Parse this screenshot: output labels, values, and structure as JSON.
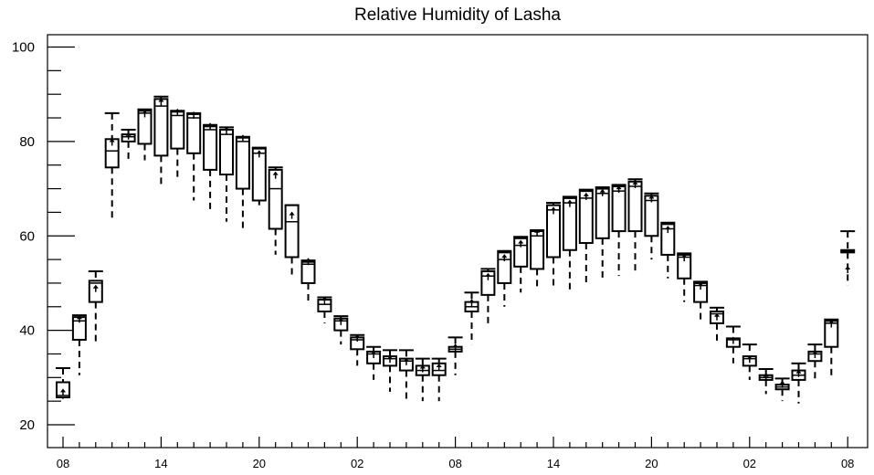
{
  "chart_data": {
    "type": "boxplot",
    "title": "Relative Humidity of Lasha",
    "xlabel": "",
    "ylabel": "",
    "ylim": [
      15,
      102
    ],
    "yticks": [
      20,
      40,
      60,
      80,
      100
    ],
    "x_tick_labels": [
      "08",
      "14",
      "20",
      "02",
      "08",
      "14",
      "20",
      "02",
      "08"
    ],
    "x_tick_hours_from_start": [
      0,
      6,
      12,
      18,
      24,
      30,
      36,
      42,
      48
    ],
    "grid": false,
    "series": [
      {
        "h": 0,
        "whisker_low": 25.5,
        "q1": 25.8,
        "median": 26.2,
        "q3": 29.0,
        "whisker_high": 32.0,
        "marker": 26.5
      },
      {
        "h": 1,
        "whisker_low": 30.5,
        "q1": 38.0,
        "median": 42.0,
        "q3": 42.8,
        "whisker_high": 43.2,
        "marker": 42.0
      },
      {
        "h": 2,
        "whisker_low": 37.5,
        "q1": 46.0,
        "median": 50.0,
        "q3": 50.5,
        "whisker_high": 52.5,
        "marker": 48.5
      },
      {
        "h": 3,
        "whisker_low": 63.0,
        "q1": 74.5,
        "median": 78.0,
        "q3": 80.5,
        "whisker_high": 86.0,
        "marker": 79.5
      },
      {
        "h": 4,
        "whisker_low": 76.0,
        "q1": 80.0,
        "median": 81.0,
        "q3": 81.5,
        "whisker_high": 82.5,
        "marker": 80.8
      },
      {
        "h": 5,
        "whisker_low": 76.0,
        "q1": 79.5,
        "median": 86.0,
        "q3": 86.5,
        "whisker_high": 86.8,
        "marker": 85.5
      },
      {
        "h": 6,
        "whisker_low": 71.0,
        "q1": 77.0,
        "median": 87.5,
        "q3": 89.0,
        "whisker_high": 89.5,
        "marker": 88.0
      },
      {
        "h": 7,
        "whisker_low": 72.5,
        "q1": 78.5,
        "median": 85.5,
        "q3": 86.3,
        "whisker_high": 86.5,
        "marker": 85.8
      },
      {
        "h": 8,
        "whisker_low": 67.5,
        "q1": 77.5,
        "median": 85.0,
        "q3": 85.8,
        "whisker_high": 86.0,
        "marker": 85.2
      },
      {
        "h": 9,
        "whisker_low": 65.5,
        "q1": 74.0,
        "median": 82.5,
        "q3": 83.2,
        "whisker_high": 83.5,
        "marker": 82.8
      },
      {
        "h": 10,
        "whisker_low": 63.0,
        "q1": 73.0,
        "median": 81.5,
        "q3": 82.5,
        "whisker_high": 83.0,
        "marker": 82.0
      },
      {
        "h": 11,
        "whisker_low": 61.5,
        "q1": 70.0,
        "median": 80.0,
        "q3": 80.8,
        "whisker_high": 81.0,
        "marker": 80.3
      },
      {
        "h": 12,
        "whisker_low": 66.5,
        "q1": 67.5,
        "median": 77.5,
        "q3": 78.5,
        "whisker_high": 78.7,
        "marker": 77.0
      },
      {
        "h": 13,
        "whisker_low": 56.0,
        "q1": 61.5,
        "median": 70.0,
        "q3": 74.0,
        "whisker_high": 74.5,
        "marker": 72.5
      },
      {
        "h": 14,
        "whisker_low": 51.0,
        "q1": 55.5,
        "median": 63.0,
        "q3": 66.5,
        "whisker_high": 66.5,
        "marker": 64.0
      },
      {
        "h": 15,
        "whisker_low": 45.5,
        "q1": 50.0,
        "median": 54.0,
        "q3": 54.5,
        "whisker_high": 54.8,
        "marker": 54.2
      },
      {
        "h": 16,
        "whisker_low": 41.5,
        "q1": 44.0,
        "median": 45.5,
        "q3": 46.5,
        "whisker_high": 47.0,
        "marker": 46.0
      },
      {
        "h": 17,
        "whisker_low": 37.0,
        "q1": 40.0,
        "median": 42.0,
        "q3": 42.5,
        "whisker_high": 43.0,
        "marker": 41.5
      },
      {
        "h": 18,
        "whisker_low": 32.5,
        "q1": 36.0,
        "median": 38.0,
        "q3": 38.5,
        "whisker_high": 39.0,
        "marker": 38.0
      },
      {
        "h": 19,
        "whisker_low": 29.5,
        "q1": 33.0,
        "median": 35.0,
        "q3": 35.5,
        "whisker_high": 36.5,
        "marker": 34.5
      },
      {
        "h": 20,
        "whisker_low": 27.0,
        "q1": 32.5,
        "median": 34.0,
        "q3": 34.5,
        "whisker_high": 35.8,
        "marker": 33.5
      },
      {
        "h": 21,
        "whisker_low": 25.5,
        "q1": 31.5,
        "median": 33.5,
        "q3": 34.0,
        "whisker_high": 35.8,
        "marker": 33.0
      },
      {
        "h": 22,
        "whisker_low": 25.0,
        "q1": 30.5,
        "median": 31.5,
        "q3": 32.5,
        "whisker_high": 34.0,
        "marker": 31.5
      },
      {
        "h": 23,
        "whisker_low": 25.0,
        "q1": 30.5,
        "median": 31.5,
        "q3": 33.0,
        "whisker_high": 34.0,
        "marker": 31.8
      },
      {
        "h": 24,
        "whisker_low": 30.5,
        "q1": 35.5,
        "median": 36.0,
        "q3": 36.5,
        "whisker_high": 38.5,
        "marker": 36.0
      },
      {
        "h": 25,
        "whisker_low": 37.0,
        "q1": 44.0,
        "median": 45.0,
        "q3": 46.0,
        "whisker_high": 48.0,
        "marker": 45.5
      },
      {
        "h": 26,
        "whisker_low": 41.0,
        "q1": 47.5,
        "median": 51.5,
        "q3": 52.5,
        "whisker_high": 53.0,
        "marker": 51.0
      },
      {
        "h": 27,
        "whisker_low": 45.0,
        "q1": 50.0,
        "median": 55.0,
        "q3": 56.5,
        "whisker_high": 56.8,
        "marker": 55.0
      },
      {
        "h": 28,
        "whisker_low": 48.0,
        "q1": 53.5,
        "median": 58.0,
        "q3": 59.5,
        "whisker_high": 59.8,
        "marker": 58.0
      },
      {
        "h": 29,
        "whisker_low": 49.0,
        "q1": 53.0,
        "median": 60.0,
        "q3": 61.0,
        "whisker_high": 61.2,
        "marker": 60.3
      },
      {
        "h": 30,
        "whisker_low": 49.0,
        "q1": 55.5,
        "median": 65.5,
        "q3": 66.5,
        "whisker_high": 67.0,
        "marker": 65.0
      },
      {
        "h": 31,
        "whisker_low": 48.5,
        "q1": 57.0,
        "median": 67.0,
        "q3": 68.0,
        "whisker_high": 68.3,
        "marker": 66.5
      },
      {
        "h": 32,
        "whisker_low": 50.0,
        "q1": 58.5,
        "median": 68.0,
        "q3": 69.5,
        "whisker_high": 69.8,
        "marker": 68.0
      },
      {
        "h": 33,
        "whisker_low": 50.5,
        "q1": 59.5,
        "median": 69.0,
        "q3": 70.0,
        "whisker_high": 70.3,
        "marker": 68.8
      },
      {
        "h": 34,
        "whisker_low": 51.5,
        "q1": 61.0,
        "median": 69.5,
        "q3": 70.5,
        "whisker_high": 70.8,
        "marker": 69.5
      },
      {
        "h": 35,
        "whisker_low": 52.0,
        "q1": 61.0,
        "median": 70.5,
        "q3": 71.5,
        "whisker_high": 72.0,
        "marker": 70.5
      },
      {
        "h": 36,
        "whisker_low": 55.0,
        "q1": 60.0,
        "median": 67.5,
        "q3": 68.5,
        "whisker_high": 69.0,
        "marker": 67.5
      },
      {
        "h": 37,
        "whisker_low": 51.0,
        "q1": 56.0,
        "median": 61.5,
        "q3": 62.5,
        "whisker_high": 62.8,
        "marker": 61.0
      },
      {
        "h": 38,
        "whisker_low": 46.0,
        "q1": 51.0,
        "median": 55.5,
        "q3": 56.0,
        "whisker_high": 56.3,
        "marker": 55.0
      },
      {
        "h": 39,
        "whisker_low": 41.5,
        "q1": 46.0,
        "median": 49.5,
        "q3": 50.0,
        "whisker_high": 50.3,
        "marker": 49.0
      },
      {
        "h": 40,
        "whisker_low": 37.0,
        "q1": 41.5,
        "median": 43.5,
        "q3": 44.0,
        "whisker_high": 44.8,
        "marker": 42.5
      },
      {
        "h": 41,
        "whisker_low": 33.0,
        "q1": 36.5,
        "median": 38.0,
        "q3": 38.3,
        "whisker_high": 40.8,
        "marker": 37.5
      },
      {
        "h": 42,
        "whisker_low": 29.5,
        "q1": 32.5,
        "median": 34.0,
        "q3": 34.5,
        "whisker_high": 37.0,
        "marker": 33.5
      },
      {
        "h": 43,
        "whisker_low": 26.5,
        "q1": 29.5,
        "median": 30.0,
        "q3": 30.5,
        "whisker_high": 31.8,
        "marker": 29.8
      },
      {
        "h": 44,
        "whisker_low": 25.0,
        "q1": 27.5,
        "median": 28.0,
        "q3": 28.5,
        "whisker_high": 29.8,
        "marker": 28.2
      },
      {
        "h": 45,
        "whisker_low": 24.5,
        "q1": 29.5,
        "median": 30.5,
        "q3": 31.5,
        "whisker_high": 33.0,
        "marker": 30.5
      },
      {
        "h": 46,
        "whisker_low": 29.0,
        "q1": 33.5,
        "median": 35.0,
        "q3": 35.5,
        "whisker_high": 37.0,
        "marker": 34.5
      },
      {
        "h": 47,
        "whisker_low": 30.0,
        "q1": 36.5,
        "median": 41.5,
        "q3": 42.0,
        "whisker_high": 42.3,
        "marker": 41.0
      },
      {
        "h": 48,
        "whisker_low": 49.5,
        "q1": 56.5,
        "median": 56.8,
        "q3": 57.0,
        "whisker_high": 61.0,
        "marker": 52.5
      }
    ]
  }
}
